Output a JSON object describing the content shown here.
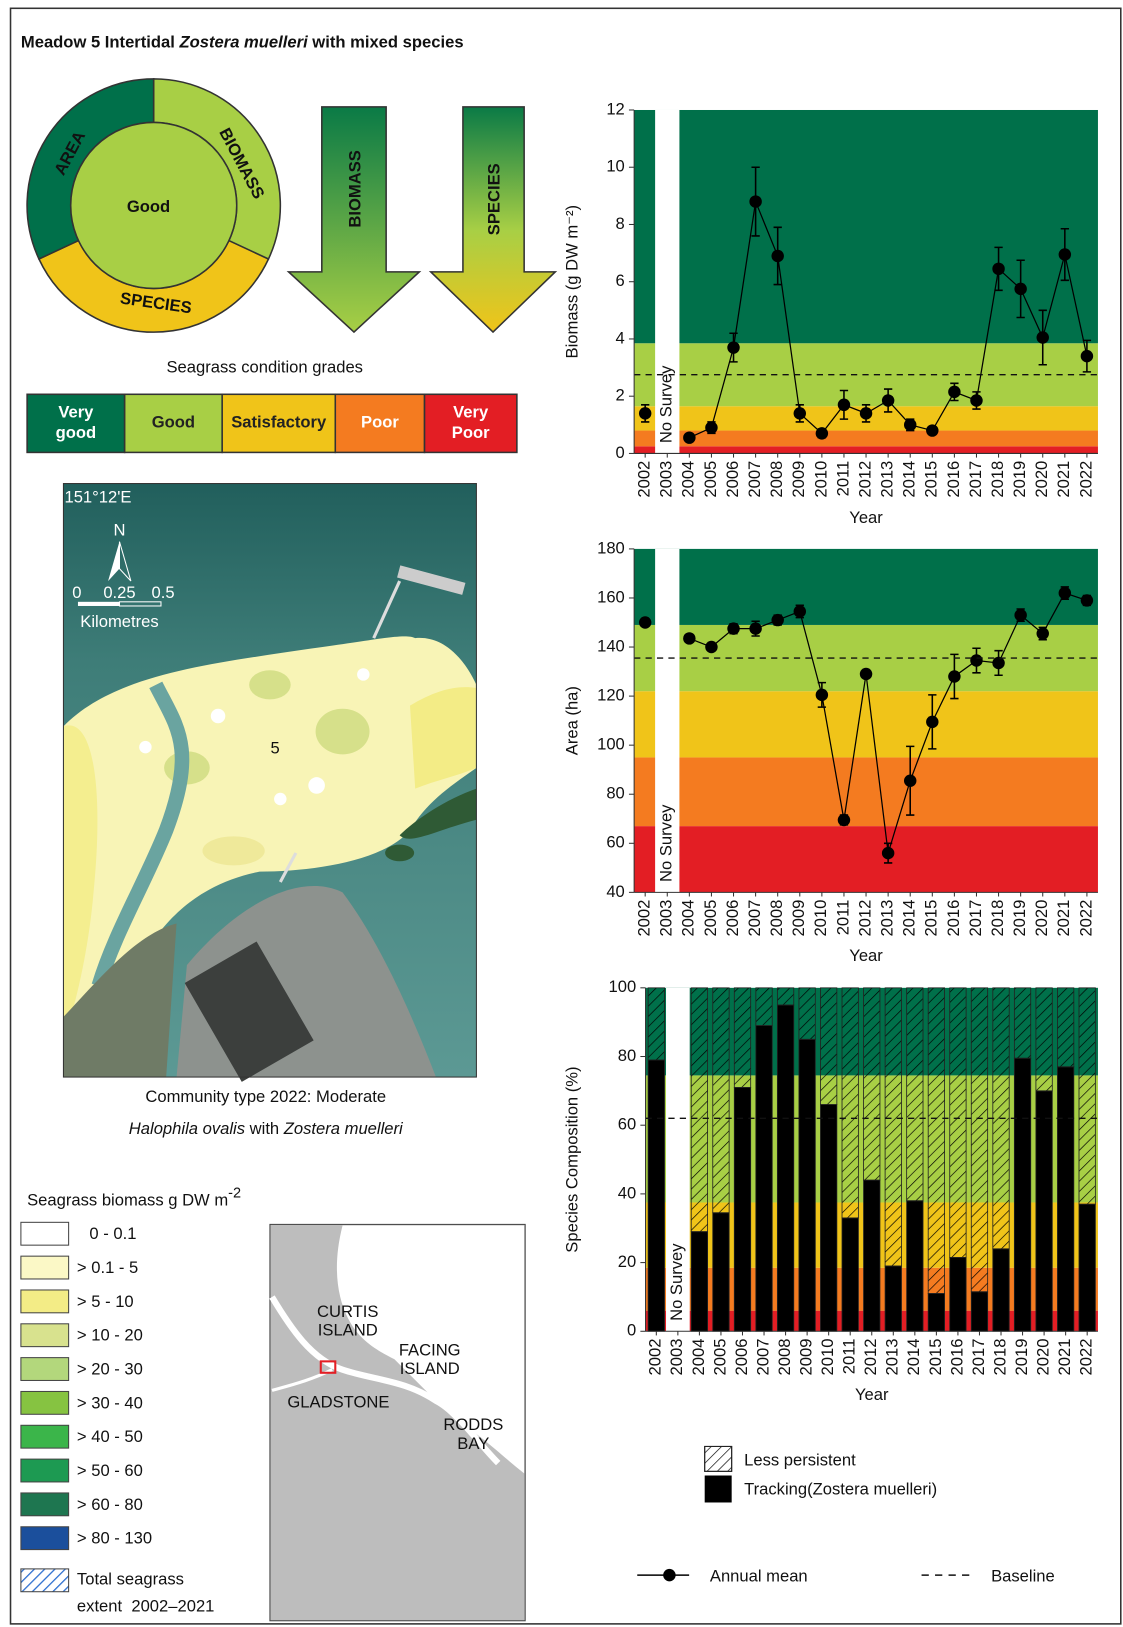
{
  "title": [
    "Meadow 5 Intertidal ",
    "Zostera muelleri",
    " with mixed species"
  ],
  "condition": {
    "center": "Good",
    "area": "AREA",
    "biomass": "BIOMASS",
    "species": "SPECIES"
  },
  "arrows": [
    "BIOMASS",
    "SPECIES"
  ],
  "grades": {
    "title": "Seagrass condition grades",
    "items": [
      {
        "lines": [
          "Very",
          "good"
        ],
        "color": "#00704a"
      },
      {
        "lines": [
          "Good"
        ],
        "color": "#a8cf45"
      },
      {
        "lines": [
          "Satisfactory"
        ],
        "color": "#f0c419"
      },
      {
        "lines": [
          "Poor"
        ],
        "color": "#f47b20"
      },
      {
        "lines": [
          "Very",
          "Poor"
        ],
        "color": "#e31e24"
      }
    ]
  },
  "map": {
    "coordinate": "151°12'E",
    "north": "N",
    "scale": [
      "0",
      "0.25",
      "0.5"
    ],
    "scale_unit": "Kilometres",
    "meadow": "5",
    "caption": [
      "Community type 2022: Moderate",
      "Halophila ovalis",
      " with ",
      "Zostera muelleri"
    ]
  },
  "biomass_legend": {
    "title": [
      "Seagrass biomass g DW m",
      "-2"
    ],
    "items": [
      {
        "label": "0 - 0.1",
        "color": "#ffffff"
      },
      {
        "label": "> 0.1 - 5",
        "color": "#fbf8c6"
      },
      {
        "label": "> 5 - 10",
        "color": "#f3ec86"
      },
      {
        "label": "> 10 - 20",
        "color": "#d8e28e"
      },
      {
        "label": "> 20 - 30",
        "color": "#b3d77c"
      },
      {
        "label": "> 30 - 40",
        "color": "#86c341"
      },
      {
        "label": "> 40 - 50",
        "color": "#3bb54a"
      },
      {
        "label": "> 50 - 60",
        "color": "#1d9a52"
      },
      {
        "label": "> 60 - 80",
        "color": "#1e7650"
      },
      {
        "label": "> 80 - 130",
        "color": "#1b4f9c"
      }
    ],
    "extent": {
      "lines": [
        "Total seagrass",
        "extent  2002–2021"
      ],
      "color": "#2e6fcf"
    }
  },
  "inset_map": {
    "labels": [
      [
        "CURTIS",
        "ISLAND"
      ],
      [
        "FACING",
        "ISLAND"
      ],
      [
        "GLADSTONE"
      ],
      [
        "RODDS",
        "BAY"
      ]
    ]
  },
  "chart_data": [
    {
      "type": "line",
      "categories": [
        "2002",
        "2003",
        "2004",
        "2005",
        "2006",
        "2007",
        "2008",
        "2009",
        "2010",
        "2011",
        "2012",
        "2013",
        "2014",
        "2015",
        "2016",
        "2017",
        "2018",
        "2019",
        "2020",
        "2021",
        "2022"
      ],
      "series": [
        {
          "name": "Annual mean",
          "color": "#000000",
          "values": [
            1.4,
            null,
            0.55,
            0.9,
            3.7,
            8.8,
            6.9,
            1.4,
            0.7,
            1.7,
            1.4,
            1.85,
            1.0,
            0.8,
            2.15,
            1.85,
            6.45,
            5.75,
            4.05,
            6.95,
            3.4
          ],
          "errors": [
            0.3,
            null,
            0.1,
            0.2,
            0.5,
            1.2,
            1.0,
            0.3,
            0.15,
            0.5,
            0.3,
            0.4,
            0.2,
            0.1,
            0.3,
            0.3,
            0.75,
            1.0,
            0.95,
            0.9,
            0.55
          ]
        }
      ],
      "baseline": 2.75,
      "baseline_label": "Baseline",
      "ylim": [
        0,
        12
      ],
      "yticks": [
        0,
        2,
        4,
        6,
        8,
        10,
        12
      ],
      "ylabel": "Biomass (g DW m⁻²)",
      "xlabel": "Year",
      "bands": [
        {
          "from": 0,
          "to": 0.25,
          "color": "#e31e24"
        },
        {
          "from": 0.25,
          "to": 0.8,
          "color": "#f47b20"
        },
        {
          "from": 0.8,
          "to": 1.65,
          "color": "#f0c419"
        },
        {
          "from": 1.65,
          "to": 3.85,
          "color": "#a8cf45"
        },
        {
          "from": 3.85,
          "to": 12,
          "color": "#00704a"
        }
      ],
      "annotation": {
        "category": "2003",
        "text": "No Survey"
      }
    },
    {
      "type": "line",
      "categories": [
        "2002",
        "2003",
        "2004",
        "2005",
        "2006",
        "2007",
        "2008",
        "2009",
        "2010",
        "2011",
        "2012",
        "2013",
        "2014",
        "2015",
        "2016",
        "2017",
        "2018",
        "2019",
        "2020",
        "2021",
        "2022"
      ],
      "series": [
        {
          "name": "Annual mean",
          "color": "#000000",
          "values": [
            150,
            null,
            143.5,
            140,
            147.5,
            147.5,
            151,
            154.5,
            120.5,
            69.5,
            129,
            56,
            85.5,
            109.5,
            128,
            134.5,
            133.5,
            153,
            145.5,
            162,
            159
          ],
          "errors": [
            1,
            null,
            1.5,
            1.5,
            2,
            3,
            2,
            2.5,
            5,
            2,
            1.5,
            4,
            14,
            11,
            9,
            5,
            5,
            2.5,
            2.5,
            2.5,
            2
          ]
        }
      ],
      "baseline": 135.5,
      "baseline_label": "Baseline",
      "ylim": [
        40,
        180
      ],
      "yticks": [
        40,
        60,
        80,
        100,
        120,
        140,
        160,
        180
      ],
      "ylabel": "Area (ha)",
      "xlabel": "Year",
      "bands": [
        {
          "from": 40,
          "to": 67,
          "color": "#e31e24"
        },
        {
          "from": 67,
          "to": 95,
          "color": "#f47b20"
        },
        {
          "from": 95,
          "to": 122,
          "color": "#f0c419"
        },
        {
          "from": 122,
          "to": 149,
          "color": "#a8cf45"
        },
        {
          "from": 149,
          "to": 180,
          "color": "#00704a"
        }
      ],
      "annotation": {
        "category": "2003",
        "text": "No Survey"
      }
    },
    {
      "type": "bar",
      "stacked": true,
      "categories": [
        "2002",
        "2003",
        "2004",
        "2005",
        "2006",
        "2007",
        "2008",
        "2009",
        "2010",
        "2011",
        "2012",
        "2013",
        "2014",
        "2015",
        "2016",
        "2017",
        "2018",
        "2019",
        "2020",
        "2021",
        "2022"
      ],
      "series": [
        {
          "name": "Tracking(Zostera muelleri)",
          "color": "#000000",
          "pattern": "solid",
          "values": [
            79,
            null,
            29,
            34.5,
            71,
            89,
            95,
            85,
            66,
            33,
            44,
            19,
            38,
            11,
            21.5,
            11.5,
            24,
            79.5,
            70,
            77,
            37
          ]
        },
        {
          "name": "Less persistent",
          "color": "#000000",
          "pattern": "hatch",
          "values": [
            21,
            null,
            71,
            65.5,
            29,
            11,
            5,
            15,
            34,
            67,
            56,
            81,
            62,
            89,
            78.5,
            88.5,
            76,
            20.5,
            30,
            23,
            63
          ]
        }
      ],
      "baseline": 62,
      "ylim": [
        0,
        100
      ],
      "yticks": [
        0,
        20,
        40,
        60,
        80,
        100
      ],
      "ylabel": "Species Composition (%)",
      "xlabel": "Year",
      "bands": [
        {
          "from": 0,
          "to": 6,
          "color": "#e31e24"
        },
        {
          "from": 6,
          "to": 18.5,
          "color": "#f47b20"
        },
        {
          "from": 18.5,
          "to": 37.5,
          "color": "#f0c419"
        },
        {
          "from": 37.5,
          "to": 74.5,
          "color": "#a8cf45"
        },
        {
          "from": 74.5,
          "to": 100,
          "color": "#00704a"
        }
      ],
      "annotation": {
        "category": "2003",
        "text": "No Survey"
      }
    }
  ]
}
